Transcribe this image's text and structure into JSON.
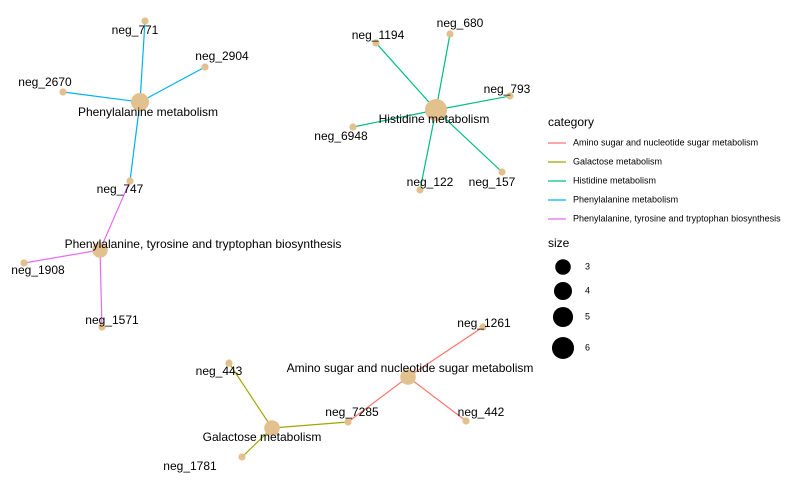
{
  "nodes": [
    {
      "label": "Phenylalanine metabolism",
      "size": 4
    },
    {
      "label": "neg_771"
    },
    {
      "label": "neg_2904"
    },
    {
      "label": "neg_2670"
    },
    {
      "label": "neg_747"
    },
    {
      "label": "Phenylalanine, tyrosine and tryptophan biosynthesis",
      "size": 3
    },
    {
      "label": "neg_1908"
    },
    {
      "label": "neg_1571"
    },
    {
      "label": "Histidine metabolism",
      "size": 6
    },
    {
      "label": "neg_1194"
    },
    {
      "label": "neg_680"
    },
    {
      "label": "neg_793"
    },
    {
      "label": "neg_6948"
    },
    {
      "label": "neg_122"
    },
    {
      "label": "neg_157"
    },
    {
      "label": "Amino sugar and nucleotide sugar metabolism",
      "size": 3
    },
    {
      "label": "neg_1261"
    },
    {
      "label": "neg_442"
    },
    {
      "label": "neg_7285"
    },
    {
      "label": "Galactose metabolism",
      "size": 3
    },
    {
      "label": "neg_443"
    },
    {
      "label": "neg_1781"
    }
  ],
  "edges": [
    {
      "from": 0,
      "to": 1,
      "category": 3
    },
    {
      "from": 0,
      "to": 2,
      "category": 3
    },
    {
      "from": 0,
      "to": 3,
      "category": 3
    },
    {
      "from": 0,
      "to": 4,
      "category": 3
    },
    {
      "from": 5,
      "to": 4,
      "category": 4
    },
    {
      "from": 5,
      "to": 6,
      "category": 4
    },
    {
      "from": 5,
      "to": 7,
      "category": 4
    },
    {
      "from": 8,
      "to": 9,
      "category": 2
    },
    {
      "from": 8,
      "to": 10,
      "category": 2
    },
    {
      "from": 8,
      "to": 11,
      "category": 2
    },
    {
      "from": 8,
      "to": 12,
      "category": 2
    },
    {
      "from": 8,
      "to": 13,
      "category": 2
    },
    {
      "from": 8,
      "to": 14,
      "category": 2
    },
    {
      "from": 15,
      "to": 16,
      "category": 0
    },
    {
      "from": 15,
      "to": 17,
      "category": 0
    },
    {
      "from": 15,
      "to": 18,
      "category": 0
    },
    {
      "from": 19,
      "to": 18,
      "category": 1
    },
    {
      "from": 19,
      "to": 20,
      "category": 1
    },
    {
      "from": 19,
      "to": 21,
      "category": 1
    }
  ],
  "legend": {
    "category": {
      "title": "category",
      "items": [
        {
          "label": "Amino sugar and nucleotide sugar metabolism",
          "color": "#F8766D"
        },
        {
          "label": "Galactose metabolism",
          "color": "#A3A500"
        },
        {
          "label": "Histidine metabolism",
          "color": "#00BF7D"
        },
        {
          "label": "Phenylalanine metabolism",
          "color": "#00B0F6"
        },
        {
          "label": "Phenylalanine, tyrosine and tryptophan biosynthesis",
          "color": "#E76BF3"
        }
      ]
    },
    "size": {
      "title": "size",
      "values": [
        3,
        4,
        5,
        6
      ]
    }
  }
}
